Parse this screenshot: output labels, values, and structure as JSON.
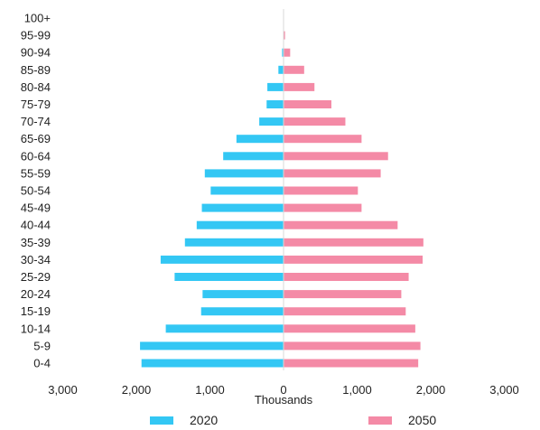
{
  "chart_data": {
    "type": "bar",
    "orientation": "horizontal",
    "layout": "population-pyramid",
    "xlabel": "Thousands",
    "xlim": [
      -3000,
      3000
    ],
    "x_ticks": [
      "3,000",
      "2,000",
      "1,000",
      "0",
      "1,000",
      "2,000",
      "3,000"
    ],
    "categories": [
      "0-4",
      "5-9",
      "10-14",
      "15-19",
      "20-24",
      "25-29",
      "30-34",
      "35-39",
      "40-44",
      "45-49",
      "50-54",
      "55-59",
      "60-64",
      "65-69",
      "70-74",
      "75-79",
      "80-84",
      "85-89",
      "90-94",
      "95-99",
      "100+"
    ],
    "series": [
      {
        "name": "2020",
        "color": "#33c7f4",
        "side": "left",
        "values": [
          1930,
          1950,
          1600,
          1120,
          1100,
          1480,
          1670,
          1340,
          1180,
          1110,
          990,
          1070,
          820,
          640,
          330,
          230,
          220,
          70,
          20,
          5,
          0
        ]
      },
      {
        "name": "2050",
        "color": "#f48aa6",
        "side": "right",
        "values": [
          1830,
          1860,
          1790,
          1660,
          1600,
          1700,
          1890,
          1900,
          1550,
          1060,
          1010,
          1320,
          1420,
          1060,
          840,
          650,
          420,
          280,
          90,
          20,
          5
        ]
      }
    ],
    "grid": false,
    "legend": "bottom"
  }
}
